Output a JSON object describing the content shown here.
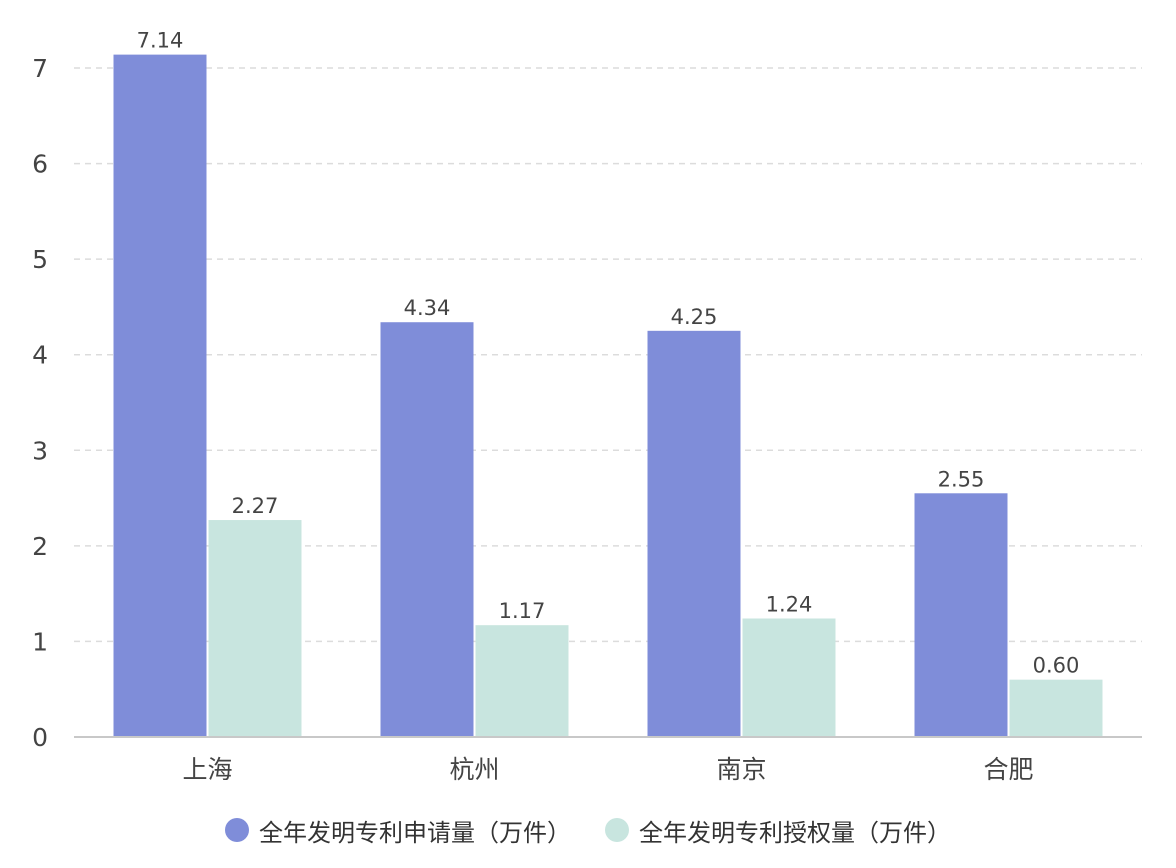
{
  "chart_data": {
    "type": "bar",
    "categories": [
      "上海",
      "杭州",
      "南京",
      "合肥"
    ],
    "series": [
      {
        "name": "全年发明专利申请量（万件）",
        "values": [
          7.14,
          4.34,
          4.25,
          2.55
        ],
        "labels": [
          "7.14",
          "4.34",
          "4.25",
          "2.55"
        ],
        "color": "#7f8dd9"
      },
      {
        "name": "全年发明专利授权量（万件）",
        "values": [
          2.27,
          1.17,
          1.24,
          0.6
        ],
        "labels": [
          "2.27",
          "1.17",
          "1.24",
          "0.60"
        ],
        "color": "#c8e5df"
      }
    ],
    "y_ticks": [
      "0",
      "1",
      "2",
      "3",
      "4",
      "5",
      "6",
      "7"
    ],
    "ylim": [
      0,
      7
    ],
    "grid": true,
    "legend_position": "bottom"
  }
}
